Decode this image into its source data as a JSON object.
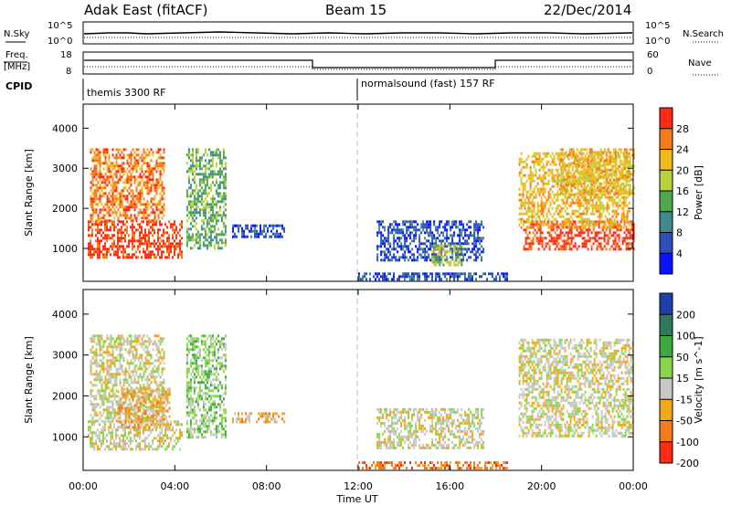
{
  "header": {
    "radar": "Adak East (fitACF)",
    "beam": "Beam 15",
    "date": "22/Dec/2014"
  },
  "summary_panels": {
    "nsky_label": "N.Sky",
    "nsearch_label": "N.Search",
    "freq_label_line1": "Freq.",
    "freq_label_line2": "[MHz]",
    "nave_label": "Nave",
    "cpid_label": "CPID",
    "noise_ticks_left": [
      "10^5",
      "10^0"
    ],
    "noise_ticks_right": [
      "10^5",
      "10^0"
    ],
    "freq_ticks": [
      "18",
      "8"
    ],
    "nave_ticks": [
      "60",
      "0"
    ],
    "cpid_segments": [
      {
        "label": "themis 3300 RF",
        "start_hour": 0,
        "end_hour": 12
      },
      {
        "label": "normalsound (fast) 157 RF",
        "start_hour": 12,
        "end_hour": 24
      }
    ]
  },
  "x_axis": {
    "label": "Time UT",
    "ticks": [
      "00:00",
      "04:00",
      "08:00",
      "12:00",
      "16:00",
      "20:00",
      "00:00"
    ]
  },
  "chart_data": [
    {
      "type": "heatmap",
      "quantity": "Power",
      "xlabel": "Time UT",
      "ylabel": "Slant Range [km]",
      "xlim": [
        0,
        24
      ],
      "ylim": [
        180,
        4600
      ],
      "yticks": [
        "1000",
        "2000",
        "3000",
        "4000"
      ],
      "colorbar": {
        "label": "Power [dB]",
        "ticks": [
          "4",
          "8",
          "12",
          "16",
          "20",
          "24",
          "28"
        ],
        "colors": [
          "#0a14ff",
          "#2d4fb8",
          "#3f8a8a",
          "#4fa84f",
          "#b9d23a",
          "#f2b81c",
          "#f57a1a",
          "#ff2b12"
        ]
      },
      "echo_regions": [
        {
          "t0": 0.2,
          "t1": 4.3,
          "r0": 800,
          "r1": 1700,
          "level": 7
        },
        {
          "t0": 0.3,
          "t1": 3.5,
          "r0": 1700,
          "r1": 3500,
          "level": 6
        },
        {
          "t0": 4.5,
          "t1": 6.2,
          "r0": 1000,
          "r1": 3500,
          "level": 3
        },
        {
          "t0": 6.5,
          "t1": 8.8,
          "r0": 1300,
          "r1": 1600,
          "level": 1
        },
        {
          "t0": 12.8,
          "t1": 17.5,
          "r0": 700,
          "r1": 1700,
          "level": 1
        },
        {
          "t0": 15.2,
          "t1": 16.5,
          "r0": 600,
          "r1": 1100,
          "level": 4
        },
        {
          "t0": 19.2,
          "t1": 24.0,
          "r0": 1000,
          "r1": 1700,
          "level": 7
        },
        {
          "t0": 19.0,
          "t1": 23.8,
          "r0": 1500,
          "r1": 3400,
          "level": 5
        },
        {
          "t0": 20.8,
          "t1": 24.0,
          "r0": 2400,
          "r1": 3500,
          "level": 5
        },
        {
          "t0": 12.0,
          "t1": 18.5,
          "r0": 200,
          "r1": 400,
          "level": 1
        }
      ]
    },
    {
      "type": "heatmap",
      "quantity": "Velocity",
      "xlabel": "Time UT",
      "ylabel": "Slant Range [km]",
      "xlim": [
        0,
        24
      ],
      "ylim": [
        180,
        4600
      ],
      "yticks": [
        "1000",
        "2000",
        "3000",
        "4000"
      ],
      "colorbar": {
        "label": "Velocity [m s^-1]",
        "ticks": [
          "200",
          "100",
          "50",
          "15",
          "-15",
          "-50",
          "-100",
          "-200"
        ],
        "colors": [
          "#1f3fa8",
          "#2f7a5a",
          "#3fa83f",
          "#8ad64a",
          "#c8c8c8",
          "#f2a81c",
          "#f57a1a",
          "#ff2b12"
        ]
      },
      "echo_regions": [
        {
          "t0": 0.2,
          "t1": 4.3,
          "r0": 700,
          "r1": 1400,
          "level": 4
        },
        {
          "t0": 0.3,
          "t1": 3.5,
          "r0": 1400,
          "r1": 3500,
          "level": 4
        },
        {
          "t0": 1.5,
          "t1": 3.8,
          "r0": 1200,
          "r1": 2200,
          "level": 5
        },
        {
          "t0": 4.5,
          "t1": 6.2,
          "r0": 1000,
          "r1": 3500,
          "level": 3
        },
        {
          "t0": 6.5,
          "t1": 8.8,
          "r0": 1350,
          "r1": 1600,
          "level": 5
        },
        {
          "t0": 12.8,
          "t1": 17.5,
          "r0": 700,
          "r1": 1700,
          "level": 4
        },
        {
          "t0": 19.0,
          "t1": 24.0,
          "r0": 1000,
          "r1": 3400,
          "level": 4
        },
        {
          "t0": 12.0,
          "t1": 18.5,
          "r0": 200,
          "r1": 400,
          "level": 6
        }
      ]
    }
  ]
}
